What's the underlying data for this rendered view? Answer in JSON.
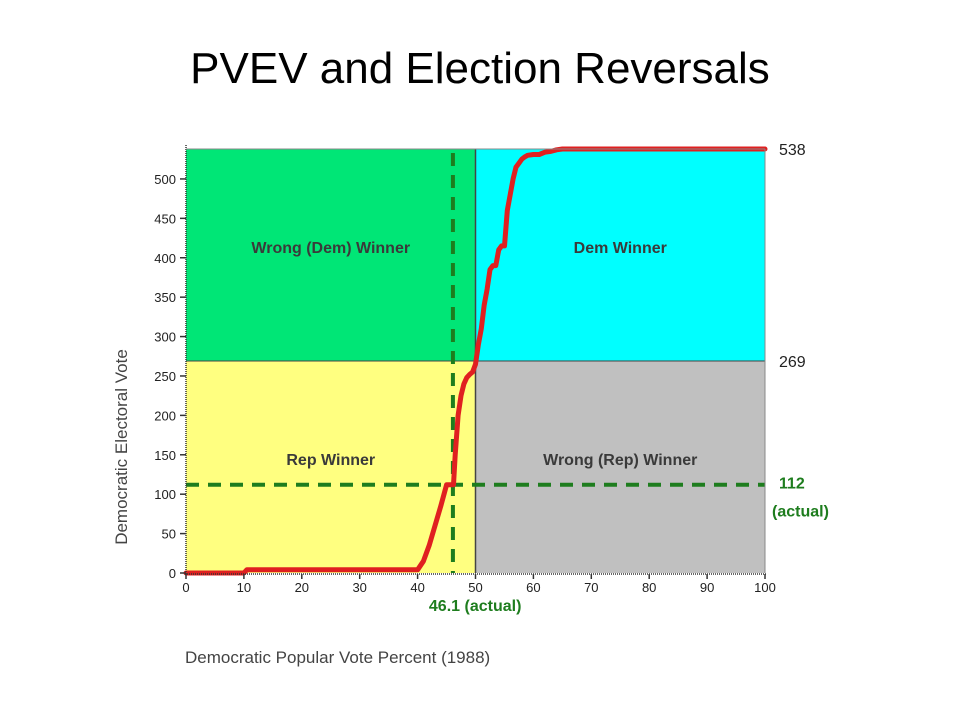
{
  "title": "PVEV and Election Reversals",
  "colors": {
    "wrong_dem": "#00e676",
    "dem": "#00ffff",
    "rep": "#ffff80",
    "wrong_rep": "#c0c0c0",
    "curve": "#e02020",
    "actual": "#1e7d1e",
    "divider": "#444444"
  },
  "chart_data": {
    "type": "line",
    "xlabel": "Democratic Popular Vote Percent (1988)",
    "ylabel": "Democratic Electoral Vote",
    "xlim": [
      0,
      100
    ],
    "ylim": [
      0,
      538
    ],
    "x_ticks": [
      0,
      10,
      20,
      30,
      40,
      50,
      60,
      70,
      80,
      90,
      100
    ],
    "y_ticks": [
      0,
      50,
      100,
      150,
      200,
      250,
      300,
      350,
      400,
      450,
      500
    ],
    "right_labels": [
      {
        "value": 538,
        "text": "538"
      },
      {
        "value": 269,
        "text": "269"
      }
    ],
    "regions": [
      {
        "name": "wrong_dem",
        "text": "Wrong (Dem) Winner",
        "x": [
          0,
          50
        ],
        "y": [
          269,
          538
        ]
      },
      {
        "name": "dem",
        "text": "Dem Winner",
        "x": [
          50,
          100
        ],
        "y": [
          269,
          538
        ]
      },
      {
        "name": "rep",
        "text": "Rep Winner",
        "x": [
          0,
          50
        ],
        "y": [
          0,
          269
        ]
      },
      {
        "name": "wrong_rep",
        "text": "Wrong (Rep) Winner",
        "x": [
          50,
          100
        ],
        "y": [
          0,
          269
        ]
      }
    ],
    "actual": {
      "x": 46.1,
      "y": 112,
      "x_text": "46.1  (actual)",
      "y_text": "112",
      "y_text2": "(actual)"
    },
    "series": [
      {
        "x": [
          0,
          10,
          10.5,
          40,
          41,
          42,
          43,
          44,
          45,
          45.5,
          46.2,
          46.5,
          47,
          47.5,
          48,
          48.5,
          49,
          49.5,
          50,
          50.5,
          51,
          51.5,
          52,
          52.5,
          53,
          53.5,
          54,
          54.5,
          55,
          55.5,
          56,
          56.5,
          57,
          57.5,
          58,
          58.5,
          59,
          60,
          61,
          62,
          63,
          64,
          65,
          100
        ],
        "y": [
          0,
          0,
          4,
          4,
          15,
          35,
          60,
          85,
          112,
          112,
          112,
          150,
          200,
          225,
          240,
          248,
          252,
          255,
          265,
          290,
          310,
          340,
          360,
          385,
          390,
          390,
          410,
          415,
          415,
          460,
          480,
          500,
          515,
          520,
          525,
          528,
          530,
          531,
          531,
          534,
          535,
          537,
          538,
          538
        ]
      }
    ]
  }
}
